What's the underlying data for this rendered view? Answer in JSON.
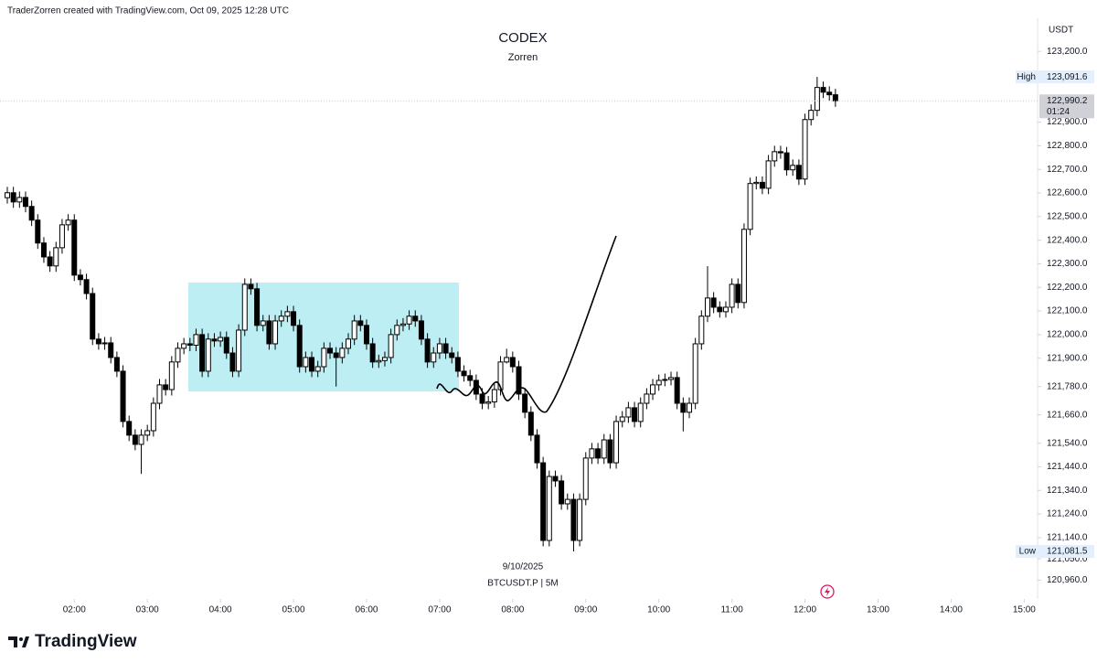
{
  "header": "TraderZorren created with TradingView.com, Oct 09, 2025 12:28 UTC",
  "brand": "TradingView",
  "chart_data": {
    "type": "candlestick",
    "title": "CODEX",
    "subtitle": "Zorren",
    "currency": "USDT",
    "date_label": "9/10/2025",
    "symbol_label": "BTCUSDT.P | 5M",
    "bull_color": "#ffffff",
    "bear_color": "#000000",
    "x": [
      "01:05",
      "01:10",
      "01:15",
      "01:20",
      "01:25",
      "01:30",
      "01:35",
      "01:40",
      "01:45",
      "01:50",
      "01:55",
      "02:00",
      "02:05",
      "02:10",
      "02:15",
      "02:20",
      "02:25",
      "02:30",
      "02:35",
      "02:40",
      "02:45",
      "02:50",
      "02:55",
      "03:00",
      "03:05",
      "03:10",
      "03:15",
      "03:20",
      "03:25",
      "03:30",
      "03:35",
      "03:40",
      "03:45",
      "03:50",
      "03:55",
      "04:00",
      "04:05",
      "04:10",
      "04:15",
      "04:20",
      "04:25",
      "04:30",
      "04:35",
      "04:40",
      "04:45",
      "04:50",
      "04:55",
      "05:00",
      "05:05",
      "05:10",
      "05:15",
      "05:20",
      "05:25",
      "05:30",
      "05:35",
      "05:40",
      "05:45",
      "05:50",
      "05:55",
      "06:00",
      "06:05",
      "06:10",
      "06:15",
      "06:20",
      "06:25",
      "06:30",
      "06:35",
      "06:40",
      "06:45",
      "06:50",
      "06:55",
      "07:00",
      "07:05",
      "07:10",
      "07:15",
      "07:20",
      "07:25",
      "07:30",
      "07:35",
      "07:40",
      "07:45",
      "07:50",
      "07:55",
      "08:00",
      "08:05",
      "08:10",
      "08:15",
      "08:20",
      "08:25",
      "08:30",
      "08:35",
      "08:40",
      "08:45",
      "08:50",
      "08:55",
      "09:00",
      "09:05",
      "09:10",
      "09:15",
      "09:20",
      "09:25",
      "09:30",
      "09:35",
      "09:40",
      "09:45",
      "09:50",
      "09:55",
      "10:00",
      "10:05",
      "10:10",
      "10:15",
      "10:20",
      "10:25",
      "10:30",
      "10:35",
      "10:40",
      "10:45",
      "10:50",
      "10:55",
      "11:00",
      "11:05",
      "11:10",
      "11:15",
      "11:20",
      "11:25",
      "11:30",
      "11:35",
      "11:40",
      "11:45",
      "11:50",
      "11:55",
      "12:00",
      "12:05",
      "12:10",
      "12:15",
      "12:20",
      "12:25"
    ],
    "open": [
      122580,
      122601,
      122562,
      122581,
      122543,
      122485,
      122388,
      122329,
      122291,
      122368,
      122465,
      122485,
      122252,
      122233,
      122174,
      121981,
      121961,
      121965,
      121903,
      121845,
      121632,
      121574,
      121535,
      121574,
      121593,
      121709,
      121787,
      121767,
      121884,
      121942,
      121961,
      121955,
      122000,
      121845,
      121981,
      121973,
      121988,
      121922,
      121845,
      122019,
      122213,
      122194,
      122039,
      122058,
      121961,
      122058,
      122078,
      122097,
      122039,
      121864,
      121903,
      121845,
      121864,
      121942,
      121922,
      121903,
      121942,
      121981,
      122058,
      122039,
      121961,
      121884,
      121890,
      121903,
      122000,
      122039,
      122045,
      122078,
      122058,
      121981,
      121884,
      121922,
      121961,
      121922,
      121903,
      121845,
      121826,
      121806,
      121748,
      121709,
      121715,
      121767,
      121884,
      121903,
      121864,
      121748,
      121671,
      121574,
      121457,
      121128,
      121399,
      121380,
      121283,
      121302,
      121128,
      121302,
      121477,
      121516,
      121477,
      121554,
      121457,
      121632,
      121651,
      121690,
      121632,
      121709,
      121748,
      121787,
      121806,
      121810,
      121818,
      121709,
      121671,
      121709,
      121961,
      122078,
      122155,
      122116,
      122097,
      122116,
      122213,
      122136,
      122446,
      122640,
      122645,
      122620,
      122736,
      122775,
      122770,
      122698,
      122717,
      122659,
      122911,
      122950,
      123047,
      123027,
      123016
    ],
    "high": [
      122626,
      122626,
      122606,
      122606,
      122568,
      122510,
      122413,
      122354,
      122393,
      122490,
      122510,
      122510,
      122277,
      122258,
      122199,
      122006,
      121990,
      121990,
      121928,
      121870,
      121657,
      121599,
      121599,
      121618,
      121734,
      121812,
      121812,
      121909,
      121967,
      121986,
      121986,
      122025,
      122025,
      122006,
      122006,
      122013,
      122013,
      121947,
      122044,
      122238,
      122238,
      122219,
      122083,
      122083,
      122083,
      122103,
      122122,
      122122,
      122064,
      121928,
      121928,
      121889,
      121967,
      121967,
      121947,
      121967,
      122006,
      122083,
      122083,
      122064,
      121986,
      121915,
      121928,
      122025,
      122064,
      122070,
      122103,
      122103,
      122083,
      122006,
      121947,
      121986,
      121986,
      121947,
      121928,
      121870,
      121851,
      121831,
      121773,
      121740,
      121792,
      121909,
      121940,
      121928,
      121889,
      121773,
      121696,
      121599,
      121482,
      121424,
      121424,
      121405,
      121327,
      121327,
      121327,
      121502,
      121541,
      121541,
      121579,
      121579,
      121657,
      121676,
      121715,
      121715,
      121734,
      121773,
      121812,
      121831,
      121835,
      121843,
      121843,
      121734,
      121734,
      121986,
      122103,
      122290,
      122180,
      122141,
      122141,
      122238,
      122238,
      122471,
      122665,
      122670,
      122670,
      122761,
      122800,
      122800,
      122795,
      122742,
      122742,
      122936,
      122975,
      123091.6,
      123072,
      123052,
      123041
    ],
    "low": [
      122555,
      122537,
      122537,
      122518,
      122460,
      122363,
      122304,
      122266,
      122266,
      122343,
      122440,
      122227,
      122208,
      122149,
      121956,
      121936,
      121936,
      121878,
      121820,
      121607,
      121549,
      121510,
      121410,
      121549,
      121568,
      121684,
      121742,
      121742,
      121859,
      121917,
      121930,
      121930,
      121820,
      121820,
      121948,
      121948,
      121897,
      121820,
      121820,
      121994,
      122169,
      122014,
      122014,
      121936,
      121936,
      122033,
      122053,
      122014,
      121839,
      121839,
      121820,
      121820,
      121839,
      121897,
      121780,
      121878,
      121917,
      121956,
      122014,
      121936,
      121859,
      121859,
      121865,
      121878,
      121975,
      122014,
      122020,
      122033,
      121956,
      121859,
      121859,
      121897,
      121897,
      121878,
      121820,
      121801,
      121781,
      121723,
      121684,
      121684,
      121690,
      121742,
      121878,
      121839,
      121723,
      121646,
      121549,
      121432,
      121103,
      121103,
      121355,
      121258,
      121258,
      121081.5,
      121103,
      121277,
      121452,
      121452,
      121452,
      121432,
      121432,
      121607,
      121626,
      121607,
      121607,
      121684,
      121723,
      121762,
      121781,
      121785,
      121684,
      121590,
      121646,
      121684,
      121936,
      122053,
      122091,
      122072,
      122072,
      122091,
      122111,
      122111,
      122421,
      122615,
      122595,
      122595,
      122711,
      122745,
      122673,
      122673,
      122634,
      122634,
      122886,
      122925,
      123002,
      122991,
      122965
    ],
    "close": [
      122601,
      122562,
      122581,
      122543,
      122485,
      122388,
      122329,
      122291,
      122368,
      122465,
      122485,
      122252,
      122233,
      122174,
      121981,
      121961,
      121965,
      121903,
      121845,
      121632,
      121574,
      121535,
      121574,
      121593,
      121709,
      121787,
      121767,
      121884,
      121942,
      121961,
      121955,
      122000,
      121845,
      121981,
      121973,
      121988,
      121922,
      121845,
      122019,
      122213,
      122194,
      122039,
      122058,
      121961,
      122058,
      122078,
      122097,
      122039,
      121864,
      121903,
      121845,
      121864,
      121942,
      121922,
      121903,
      121942,
      121981,
      122058,
      122039,
      121961,
      121884,
      121890,
      121903,
      122000,
      122039,
      122045,
      122078,
      122058,
      121981,
      121884,
      121922,
      121961,
      121922,
      121903,
      121845,
      121826,
      121806,
      121748,
      121709,
      121715,
      121767,
      121884,
      121903,
      121864,
      121748,
      121671,
      121574,
      121457,
      121128,
      121399,
      121380,
      121283,
      121302,
      121128,
      121302,
      121477,
      121516,
      121477,
      121554,
      121457,
      121632,
      121651,
      121690,
      121632,
      121709,
      121748,
      121787,
      121806,
      121810,
      121818,
      121709,
      121671,
      121709,
      121961,
      122078,
      122155,
      122116,
      122097,
      122116,
      122213,
      122136,
      122446,
      122640,
      122645,
      122620,
      122736,
      122775,
      122770,
      122698,
      122717,
      122659,
      122911,
      122950,
      123047,
      123027,
      123016,
      122990.2
    ],
    "xlim": [
      "00:59",
      "15:11"
    ],
    "xticks": [
      "02:00",
      "03:00",
      "04:00",
      "05:00",
      "06:00",
      "07:00",
      "08:00",
      "09:00",
      "10:00",
      "11:00",
      "12:00",
      "13:00",
      "14:00",
      "15:00"
    ],
    "ylim": [
      120880,
      123340
    ],
    "yticks": [
      {
        "value": 123200,
        "label": "123,200.0"
      },
      {
        "value": 122900,
        "label": "122,900.0"
      },
      {
        "value": 122800,
        "label": "122,800.0"
      },
      {
        "value": 122700,
        "label": "122,700.0"
      },
      {
        "value": 122600,
        "label": "122,600.0"
      },
      {
        "value": 122500,
        "label": "122,500.0"
      },
      {
        "value": 122400,
        "label": "122,400.0"
      },
      {
        "value": 122300,
        "label": "122,300.0"
      },
      {
        "value": 122200,
        "label": "122,200.0"
      },
      {
        "value": 122100,
        "label": "122,100.0"
      },
      {
        "value": 122000,
        "label": "122,000.0"
      },
      {
        "value": 121900,
        "label": "121,900.0"
      },
      {
        "value": 121780,
        "label": "121,780.0"
      },
      {
        "value": 121660,
        "label": "121,660.0"
      },
      {
        "value": 121540,
        "label": "121,540.0"
      },
      {
        "value": 121440,
        "label": "121,440.0"
      },
      {
        "value": 121340,
        "label": "121,340.0"
      },
      {
        "value": 121240,
        "label": "121,240.0"
      },
      {
        "value": 121140,
        "label": "121,140.0"
      },
      {
        "value": 121050,
        "label": "121,050.0"
      },
      {
        "value": 120960,
        "label": "120,960.0"
      }
    ],
    "high_marker": {
      "name": "High",
      "value": 123091.6,
      "label": "123,091.6"
    },
    "low_marker": {
      "name": "Low",
      "value": 121081.5,
      "label": "121,081.5"
    },
    "last_price": {
      "value": 122990.2,
      "label": "122,990.2",
      "countdown": "01:24"
    }
  }
}
